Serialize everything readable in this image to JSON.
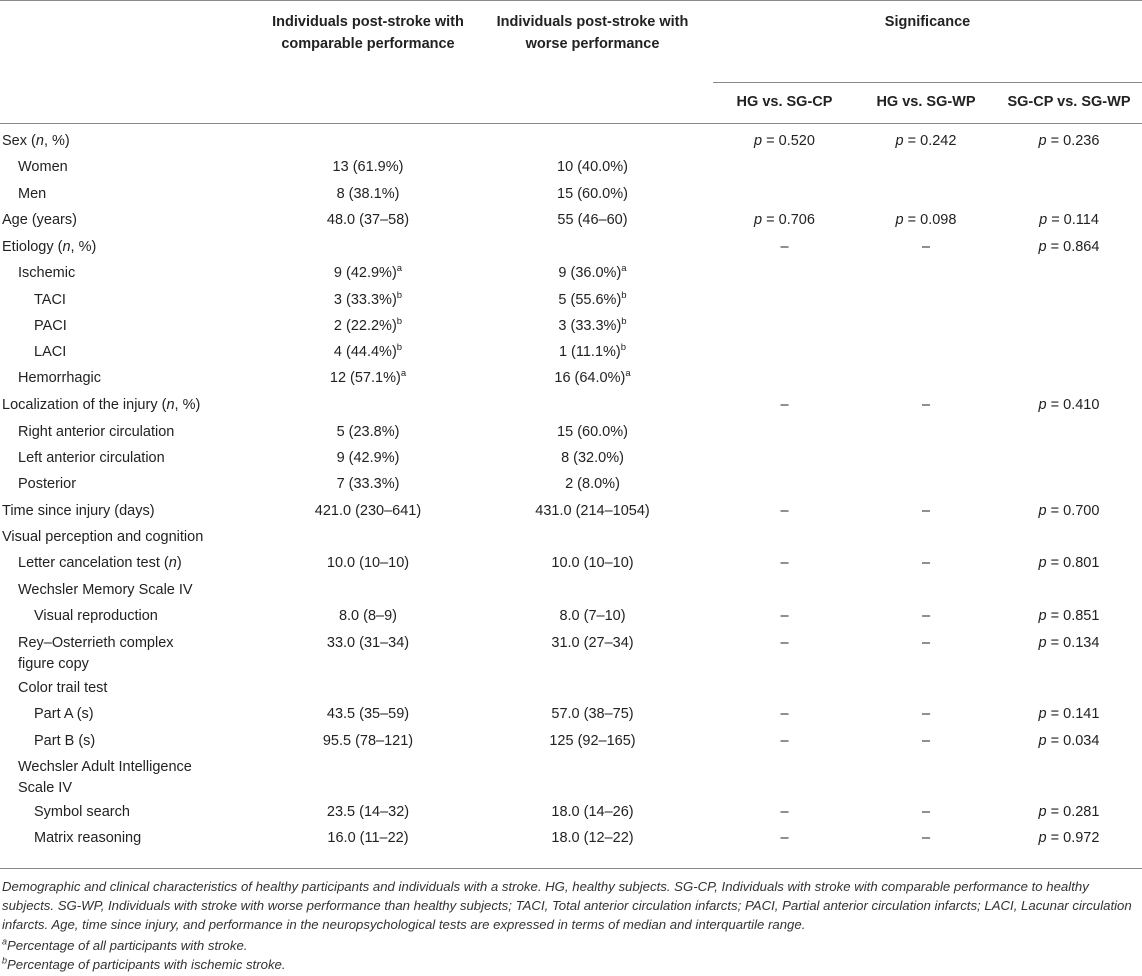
{
  "header": {
    "col1": "Individuals post-stroke with comparable performance",
    "col2": "Individuals post-stroke with worse performance",
    "significance": "Significance",
    "sub1": "HG vs. SG-CP",
    "sub2": "HG vs. SG-WP",
    "sub3": "SG-CP vs. SG-WP"
  },
  "rows": [
    {
      "label": "Sex (n, %)",
      "c1": "",
      "c2": "",
      "c3": "p = 0.520",
      "c4": "p = 0.242",
      "c5": "p = 0.236"
    },
    {
      "label": "Women",
      "c1": "13 (61.9%)",
      "c2": "10 (40.0%)",
      "c3": "",
      "c4": "",
      "c5": ""
    },
    {
      "label": "Men",
      "c1": "8 (38.1%)",
      "c2": "15 (60.0%)",
      "c3": "",
      "c4": "",
      "c5": ""
    },
    {
      "label": "Age (years)",
      "c1": "48.0 (37–58)",
      "c2": "55 (46–60)",
      "c3": "p = 0.706",
      "c4": "p = 0.098",
      "c5": "p = 0.114"
    },
    {
      "label": "Etiology (n, %)",
      "c1": "",
      "c2": "",
      "c3": "–",
      "c4": "–",
      "c5": "p = 0.864"
    },
    {
      "label": "Ischemic",
      "c1": "9 (42.9%)",
      "c1sup": "a",
      "c2": "9 (36.0%)",
      "c2sup": "a",
      "c3": "",
      "c4": "",
      "c5": ""
    },
    {
      "label": "TACI",
      "c1": "3 (33.3%)",
      "c1sup": "b",
      "c2": "5 (55.6%)",
      "c2sup": "b",
      "c3": "",
      "c4": "",
      "c5": ""
    },
    {
      "label": "PACI",
      "c1": "2 (22.2%)",
      "c1sup": "b",
      "c2": "3 (33.3%)",
      "c2sup": "b",
      "c3": "",
      "c4": "",
      "c5": ""
    },
    {
      "label": "LACI",
      "c1": "4 (44.4%)",
      "c1sup": "b",
      "c2": "1 (11.1%)",
      "c2sup": "b",
      "c3": "",
      "c4": "",
      "c5": ""
    },
    {
      "label": "Hemorrhagic",
      "c1": "12 (57.1%)",
      "c1sup": "a",
      "c2": "16 (64.0%)",
      "c2sup": "a",
      "c3": "",
      "c4": "",
      "c5": ""
    },
    {
      "label": "Localization of the injury (n, %)",
      "c1": "",
      "c2": "",
      "c3": "–",
      "c4": "–",
      "c5": "p = 0.410"
    },
    {
      "label": "Right anterior circulation",
      "c1": "5 (23.8%)",
      "c2": "15 (60.0%)",
      "c3": "",
      "c4": "",
      "c5": ""
    },
    {
      "label": "Left anterior circulation",
      "c1": "9 (42.9%)",
      "c2": "8 (32.0%)",
      "c3": "",
      "c4": "",
      "c5": ""
    },
    {
      "label": "Posterior",
      "c1": "7 (33.3%)",
      "c2": "2 (8.0%)",
      "c3": "",
      "c4": "",
      "c5": ""
    },
    {
      "label": "Time since injury (days)",
      "c1": "421.0 (230–641)",
      "c2": "431.0 (214–1054)",
      "c3": "–",
      "c4": "–",
      "c5": "p = 0.700"
    },
    {
      "label": "Visual perception and cognition",
      "c1": "",
      "c2": "",
      "c3": "",
      "c4": "",
      "c5": ""
    },
    {
      "label": "Letter cancelation test (n)",
      "c1": "10.0 (10–10)",
      "c2": "10.0 (10–10)",
      "c3": "–",
      "c4": "–",
      "c5": "p = 0.801"
    },
    {
      "label": "Wechsler Memory Scale IV",
      "c1": "",
      "c2": "",
      "c3": "",
      "c4": "",
      "c5": ""
    },
    {
      "label": "Visual reproduction",
      "c1": "8.0 (8–9)",
      "c2": "8.0 (7–10)",
      "c3": "–",
      "c4": "–",
      "c5": "p = 0.851"
    },
    {
      "label": "Rey–Osterrieth complex",
      "label2": "figure copy",
      "c1": "33.0 (31–34)",
      "c2": "31.0 (27–34)",
      "c3": "–",
      "c4": "–",
      "c5": "p = 0.134"
    },
    {
      "label": "Color trail test",
      "c1": "",
      "c2": "",
      "c3": "",
      "c4": "",
      "c5": ""
    },
    {
      "label": "Part A (s)",
      "c1": "43.5 (35–59)",
      "c2": "57.0 (38–75)",
      "c3": "–",
      "c4": "–",
      "c5": "p = 0.141"
    },
    {
      "label": "Part B (s)",
      "c1": "95.5 (78–121)",
      "c2": "125 (92–165)",
      "c3": "–",
      "c4": "–",
      "c5": "p = 0.034"
    },
    {
      "label": "Wechsler Adult Intelligence",
      "label2": "Scale IV",
      "c1": "",
      "c2": "",
      "c3": "",
      "c4": "",
      "c5": ""
    },
    {
      "label": "Symbol search",
      "c1": "23.5 (14–32)",
      "c2": "18.0 (14–26)",
      "c3": "–",
      "c4": "–",
      "c5": "p = 0.281"
    },
    {
      "label": "Matrix reasoning",
      "c1": "16.0 (11–22)",
      "c2": "18.0 (12–22)",
      "c3": "–",
      "c4": "–",
      "c5": "p = 0.972"
    }
  ],
  "notes": "Demographic and clinical characteristics of healthy participants and individuals with a stroke. HG, healthy subjects. SG-CP, Individuals with stroke with comparable performance to healthy subjects. SG-WP, Individuals with stroke with worse performance than healthy subjects; TACI, Total anterior circulation infarcts; PACI, Partial anterior circulation infarcts; LACI, Lacunar circulation infarcts. Age, time since injury, and performance in the neuropsychological tests are expressed in terms of median and interquartile range.",
  "footnotes": [
    {
      "mark": "a",
      "text": "Percentage of all participants with stroke."
    },
    {
      "mark": "b",
      "text": "Percentage of participants with ischemic stroke."
    }
  ]
}
